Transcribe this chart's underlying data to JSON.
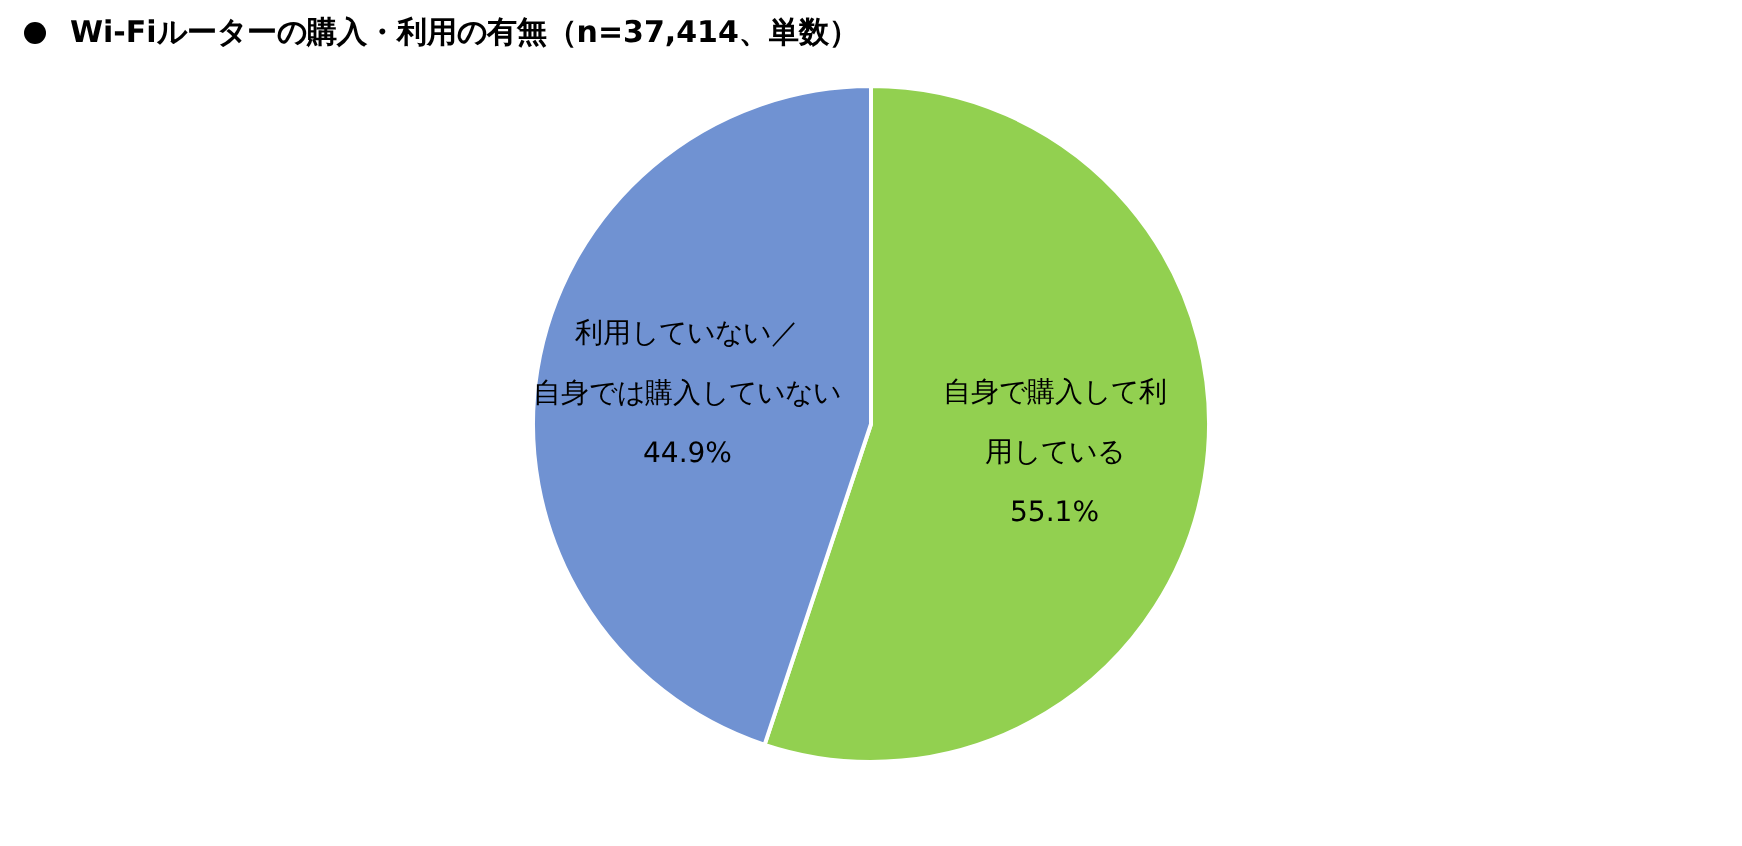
{
  "chart_data": {
    "type": "pie",
    "title": "Wi-Fiルーターの購入・利用の有無（n=37,414、単数）",
    "categories": [
      "自身で購入して利用している",
      "利用していない／自身では購入していない"
    ],
    "values": [
      55.1,
      44.9
    ],
    "colors": [
      "#92d050",
      "#7092d2"
    ],
    "value_labels": [
      "55.1%",
      "44.9%"
    ],
    "legend": false
  }
}
